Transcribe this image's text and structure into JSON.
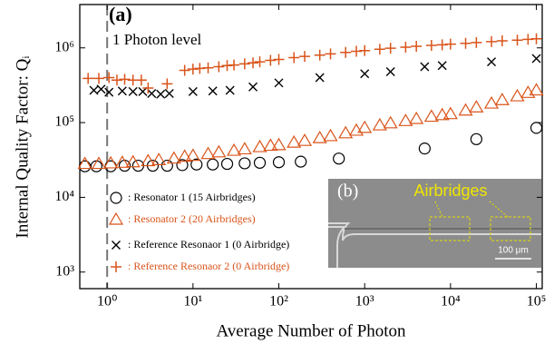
{
  "chart_data": {
    "type": "scatter",
    "title": "(a)",
    "xlabel": "Average Number of Photon",
    "ylabel": "Internal Quality Factor: Qᵢ",
    "annotation": "1 Photon level",
    "vline": 1,
    "xscale": "log",
    "yscale": "log",
    "xlim": [
      0.48,
      117000
    ],
    "ylim": [
      600,
      3800000
    ],
    "xticks": [
      {
        "value": 1,
        "label": "10⁰"
      },
      {
        "value": 10,
        "label": "10¹"
      },
      {
        "value": 100,
        "label": "10²"
      },
      {
        "value": 1000,
        "label": "10³"
      },
      {
        "value": 10000,
        "label": "10⁴"
      },
      {
        "value": 100000,
        "label": "10⁵"
      }
    ],
    "yticks": [
      {
        "value": 1000,
        "label": "10³"
      },
      {
        "value": 10000,
        "label": "10⁴"
      },
      {
        "value": 100000,
        "label": "10⁵"
      },
      {
        "value": 1000000,
        "label": "10⁶"
      }
    ],
    "legend": "lower left",
    "inset": {
      "label": "(b)",
      "title": "Airbridges",
      "scale_bar": "100 μm"
    },
    "series": [
      {
        "name": ": Resonator 1 (15 Airbridges)",
        "color": "#000000",
        "marker": "o",
        "x": [
          0.55,
          0.75,
          1.1,
          1.6,
          2.3,
          3.4,
          5,
          7.5,
          11,
          17,
          25,
          40,
          60,
          100,
          180,
          500,
          5000,
          20000,
          100000
        ],
        "values": [
          26000,
          26000,
          26000,
          26500,
          26500,
          26500,
          26500,
          27000,
          27500,
          27500,
          28000,
          28500,
          29000,
          29500,
          30000,
          33000,
          45000,
          60000,
          85000
        ]
      },
      {
        "name": ": Resonator 2 (20 Airbridges)",
        "color": "#d9541a",
        "marker": "^",
        "x": [
          0.55,
          0.8,
          1.1,
          1.5,
          2,
          3,
          4,
          6,
          8,
          10,
          15,
          20,
          30,
          40,
          60,
          80,
          100,
          150,
          200,
          300,
          400,
          600,
          800,
          1000,
          1500,
          2000,
          3000,
          4000,
          6000,
          8000,
          10000,
          15000,
          20000,
          30000,
          40000,
          60000,
          80000,
          100000
        ],
        "values": [
          28000,
          28000,
          28500,
          29000,
          29500,
          30500,
          31500,
          33000,
          35000,
          36000,
          38000,
          40000,
          42000,
          44000,
          47000,
          49000,
          50000,
          54000,
          57000,
          62000,
          66000,
          72000,
          78000,
          85000,
          92000,
          98000,
          105000,
          112000,
          120000,
          126000,
          130000,
          145000,
          160000,
          180000,
          200000,
          225000,
          250000,
          270000
        ]
      },
      {
        "name": ": Reference Resonaor 1 (0 Airbridge)",
        "color": "#000000",
        "marker": "x",
        "x": [
          0.7,
          0.85,
          1.05,
          1.5,
          2,
          2.6,
          3.3,
          4.2,
          5.3,
          10,
          17,
          27,
          50,
          100,
          300,
          1000,
          2000,
          5000,
          8000,
          30000,
          100000
        ],
        "values": [
          270000,
          280000,
          255000,
          265000,
          260000,
          260000,
          245000,
          240000,
          245000,
          260000,
          265000,
          270000,
          300000,
          340000,
          400000,
          450000,
          480000,
          560000,
          580000,
          650000,
          720000
        ]
      },
      {
        "name": ": Reference Resonaor 2 (0 Airbridge)",
        "color": "#d9541a",
        "marker": "+",
        "x": [
          0.6,
          0.8,
          1.05,
          1.3,
          1.6,
          2,
          2.5,
          3,
          5,
          8,
          10,
          12,
          15,
          20,
          25,
          30,
          40,
          50,
          60,
          80,
          100,
          150,
          200,
          300,
          400,
          600,
          800,
          1000,
          1500,
          2000,
          3000,
          4000,
          6000,
          8000,
          10000,
          15000,
          20000,
          30000,
          40000,
          60000,
          80000,
          100000
        ],
        "values": [
          390000,
          390000,
          400000,
          370000,
          380000,
          370000,
          370000,
          290000,
          330000,
          500000,
          520000,
          530000,
          540000,
          560000,
          580000,
          590000,
          610000,
          630000,
          650000,
          680000,
          700000,
          740000,
          770000,
          800000,
          830000,
          870000,
          900000,
          920000,
          960000,
          990000,
          1020000,
          1050000,
          1080000,
          1100000,
          1120000,
          1150000,
          1180000,
          1210000,
          1240000,
          1270000,
          1300000,
          1320000
        ]
      }
    ]
  }
}
